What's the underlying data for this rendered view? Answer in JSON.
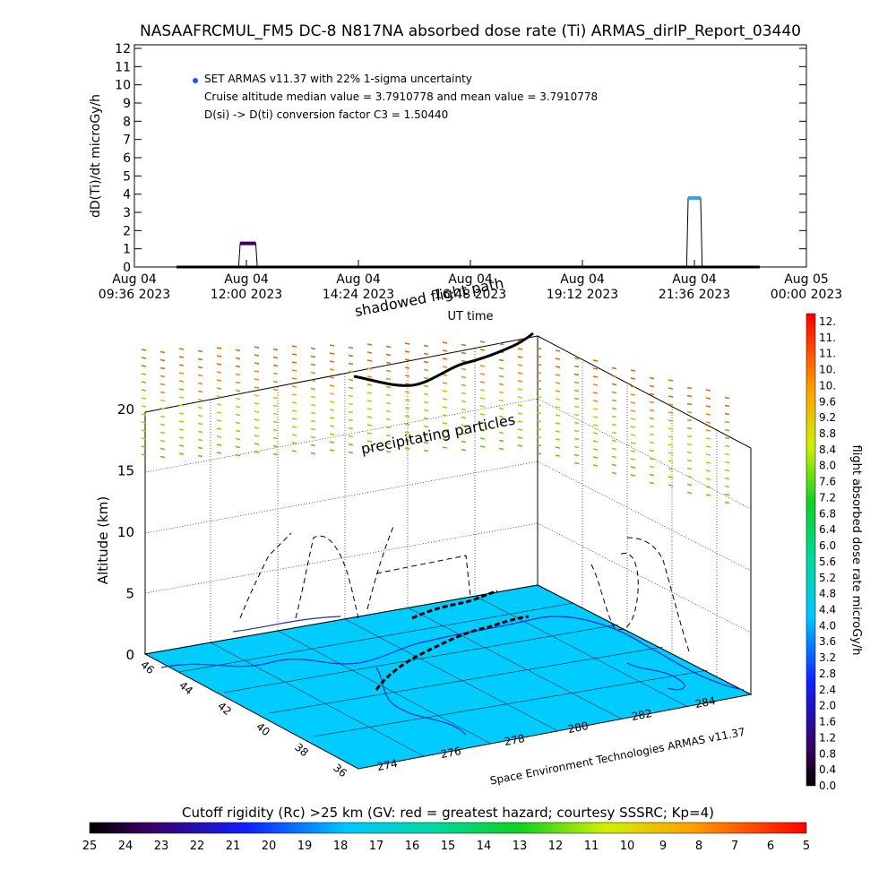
{
  "title": "NASAAFRCMUL_FM5 DC-8   N817NA absorbed dose rate (Ti) ARMAS_dirIP_Report_03440",
  "chart_data": [
    {
      "type": "line",
      "xlabel": "UT time",
      "ylabel": "dD(Ti)/dt microGy/h",
      "ylim": [
        0,
        12
      ],
      "y_ticks": [
        "0",
        "1",
        "2",
        "3",
        "4",
        "5",
        "6",
        "7",
        "8",
        "9",
        "10",
        "11",
        "12"
      ],
      "x_ticks": [
        {
          "line1": "Aug 04",
          "line2": "09:36 2023"
        },
        {
          "line1": "Aug 04",
          "line2": "12:00 2023"
        },
        {
          "line1": "Aug 04",
          "line2": "14:24 2023"
        },
        {
          "line1": "Aug 04",
          "line2": "16:48 2023"
        },
        {
          "line1": "Aug 04",
          "line2": "19:12 2023"
        },
        {
          "line1": "Aug 04",
          "line2": "21:36 2023"
        },
        {
          "line1": "Aug 05",
          "line2": "00:00 2023"
        }
      ],
      "annotations": [
        "SET ARMAS v11.37 with 22% 1-sigma uncertainty",
        "Cruise altitude median value = 3.7910778 and mean value = 3.7910778",
        "D(si) -> D(ti) conversion factor C3 = 1.50440"
      ],
      "series": [
        {
          "x": [
            "2023-08-04 10:30",
            "2023-08-04 11:50",
            "2023-08-04 11:52",
            "2023-08-04 12:12",
            "2023-08-04 12:14",
            "2023-08-04 20:30",
            "2023-08-04 21:26",
            "2023-08-04 21:28",
            "2023-08-04 21:44",
            "2023-08-04 21:46",
            "2023-08-04 23:00"
          ],
          "y": [
            0,
            0,
            1.3,
            1.3,
            0,
            0,
            0,
            3.79,
            3.79,
            0,
            0
          ]
        }
      ],
      "marker_color": "#2050ff"
    },
    {
      "type": "scatter",
      "zlabel": "Altitude (km)",
      "zlim": [
        0,
        20
      ],
      "z_ticks": [
        "0",
        "5",
        "10",
        "15",
        "20"
      ],
      "x_ticks": [
        "274",
        "276",
        "278",
        "280",
        "282",
        "284"
      ],
      "y_ticks": [
        "36",
        "38",
        "40",
        "42",
        "44",
        "46"
      ],
      "labels": [
        "shadowed flight path",
        "precipitating particles",
        "Space Environment Technologies ARMAS v11.37"
      ],
      "sea_color": "#00ccff"
    }
  ],
  "colorbar_right": {
    "label": "flight absorbed dose rate microGy/h",
    "ticks": [
      "0.0",
      "0.4",
      "0.8",
      "1.2",
      "1.6",
      "2.0",
      "2.4",
      "2.8",
      "3.2",
      "3.6",
      "4.0",
      "4.4",
      "4.8",
      "5.2",
      "5.6",
      "6.0",
      "6.4",
      "6.8",
      "7.2",
      "7.6",
      "8.0",
      "8.4",
      "8.8",
      "9.2",
      "9.6",
      "10.",
      "10.",
      "11.",
      "11.",
      "12."
    ]
  },
  "colorbar_bottom": {
    "label": "Cutoff rigidity (Rc) >25 km (GV: red = greatest hazard; courtesy SSSRC; Kp=4)",
    "ticks": [
      "25",
      "24",
      "23",
      "22",
      "21",
      "20",
      "19",
      "18",
      "17",
      "16",
      "15",
      "14",
      "13",
      "12",
      "11",
      "10",
      "9",
      "8",
      "7",
      "6",
      "5"
    ]
  }
}
